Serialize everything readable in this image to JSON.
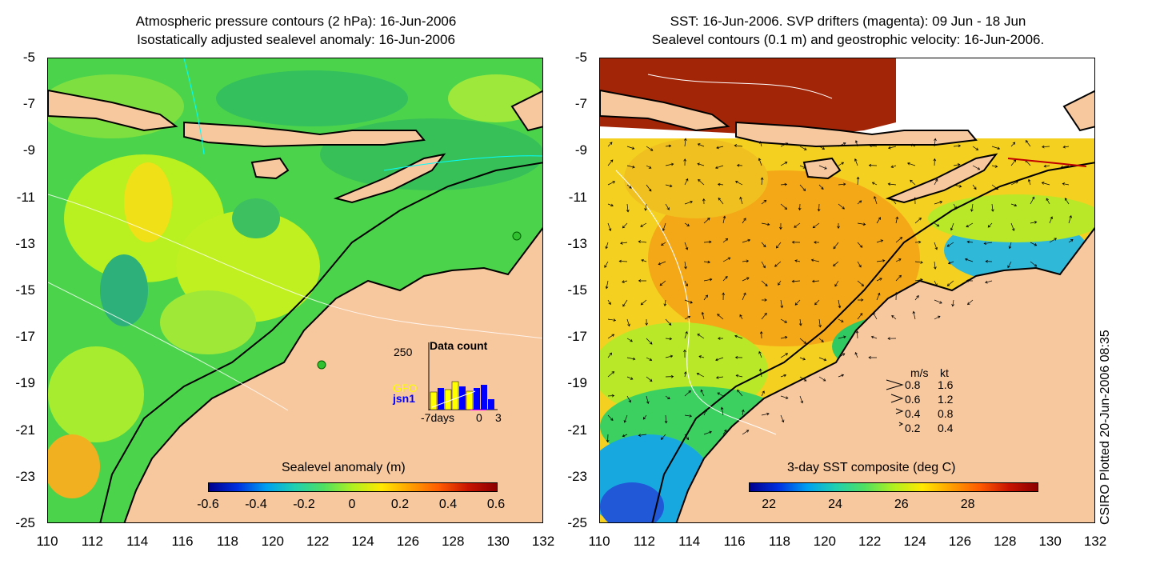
{
  "left_panel": {
    "title_line1": "Atmospheric pressure contours (2 hPa): 16-Jun-2006",
    "title_line2": "Isostatically adjusted sealevel anomaly: 16-Jun-2006",
    "colorbar_label": "Sealevel anomaly (m)",
    "colorbar_ticks": [
      "-0.6",
      "-0.4",
      "-0.2",
      "0",
      "0.2",
      "0.4",
      "0.6"
    ],
    "colorbar_colors": [
      "#00008c",
      "#0030e0",
      "#00a0f0",
      "#20d0b0",
      "#50e060",
      "#b0f020",
      "#ffe800",
      "#ffa000",
      "#ff5a00",
      "#c81400",
      "#8c0000"
    ],
    "inset": {
      "title": "Data count",
      "max_label": "250",
      "series_labels": [
        "GFO",
        "jsn1"
      ],
      "axis_ticks": [
        "-7days",
        "0",
        "3"
      ],
      "gfo_color": "#ffff00",
      "jsn1_color": "#0000ff",
      "marker_color": "#ff00ff"
    }
  },
  "right_panel": {
    "title_line1": "SST: 16-Jun-2006. SVP drifters (magenta): 09 Jun - 18 Jun",
    "title_line2": "Sealevel contours (0.1 m) and geostrophic velocity: 16-Jun-2006.",
    "colorbar_label": "3-day SST composite (deg C)",
    "colorbar_ticks": [
      "22",
      "24",
      "26",
      "28"
    ],
    "colorbar_colors": [
      "#00008c",
      "#0030e0",
      "#00a0f0",
      "#20d0b0",
      "#50e060",
      "#b0f020",
      "#ffe800",
      "#ffa000",
      "#ff5a00",
      "#c81400",
      "#8c0000"
    ],
    "velocity_legend": {
      "header_ms": "m/s",
      "header_kt": "kt",
      "rows": [
        {
          "ms": "0.8",
          "kt": "1.6"
        },
        {
          "ms": "0.6",
          "kt": "1.2"
        },
        {
          "ms": "0.4",
          "kt": "0.8"
        },
        {
          "ms": "0.2",
          "kt": "0.4"
        }
      ]
    }
  },
  "axes": {
    "y_ticks": [
      "-5",
      "-7",
      "-9",
      "-11",
      "-13",
      "-15",
      "-17",
      "-19",
      "-21",
      "-23",
      "-25"
    ],
    "x_ticks": [
      "110",
      "112",
      "114",
      "116",
      "118",
      "120",
      "122",
      "124",
      "126",
      "128",
      "130",
      "132"
    ]
  },
  "credit": "CSIRO Plotted 20-Jun-2006 08:35",
  "colors": {
    "land": "#f7c79e",
    "sla_field": "#4cd34c",
    "sst_field": "#f4d020",
    "sst_warm": "#a32508",
    "sst_cool": "#18a8e0"
  }
}
